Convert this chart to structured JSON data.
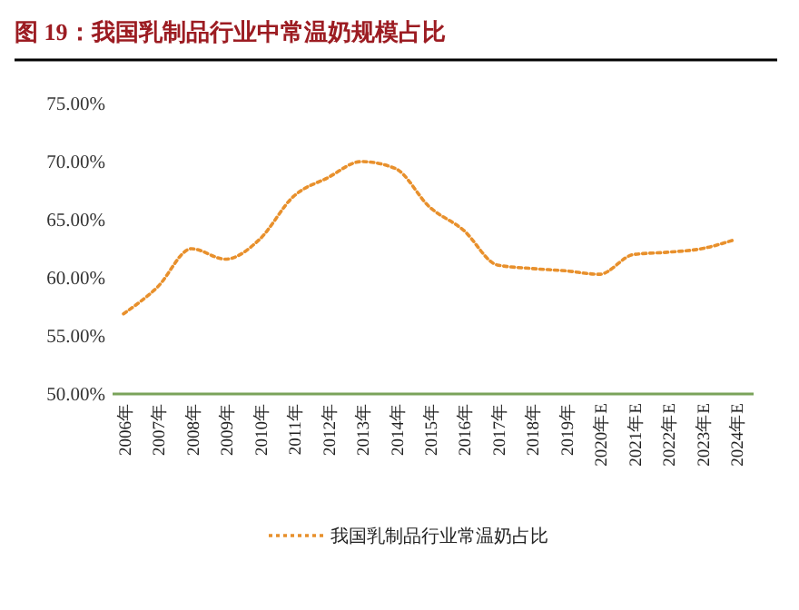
{
  "chart_data": {
    "type": "line",
    "title": "图 19：我国乳制品行业中常温奶规模占比",
    "categories": [
      "2006年",
      "2007年",
      "2008年",
      "2009年",
      "2010年",
      "2011年",
      "2012年",
      "2013年",
      "2014年",
      "2015年",
      "2016年",
      "2017年",
      "2018年",
      "2019年",
      "2020年E",
      "2021年E",
      "2022年E",
      "2023年E",
      "2024年E"
    ],
    "series": [
      {
        "name": "我国乳制品行业常温奶占比",
        "color": "#e8902c",
        "values": [
          56.9,
          59.2,
          62.5,
          61.6,
          63.3,
          67.0,
          68.6,
          70.0,
          69.4,
          66.1,
          64.1,
          61.1,
          60.8,
          60.6,
          60.3,
          62.0,
          62.2,
          62.5,
          63.3
        ]
      }
    ],
    "ylim": [
      50,
      75
    ],
    "yticks": [
      {
        "value": 50,
        "label": "50.00%"
      },
      {
        "value": 55,
        "label": "55.00%"
      },
      {
        "value": 60,
        "label": "60.00%"
      },
      {
        "value": 65,
        "label": "65.00%"
      },
      {
        "value": 70,
        "label": "70.00%"
      },
      {
        "value": 75,
        "label": "75.00%"
      }
    ],
    "grid": false,
    "legend": "bottom",
    "line_style": "dotted",
    "marker": "none"
  }
}
